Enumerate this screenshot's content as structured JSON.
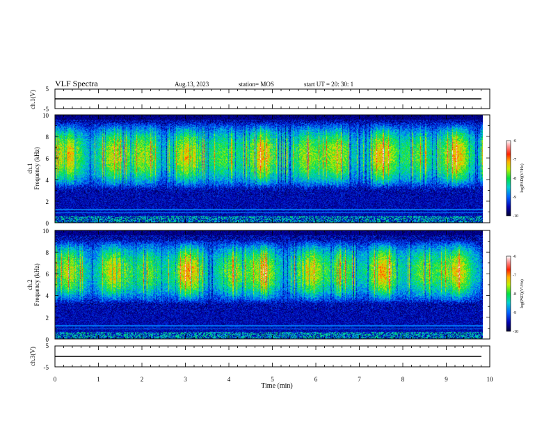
{
  "header": {
    "title": "VLF Spectra",
    "date": "Aug.13, 2023",
    "station": "station= MOS",
    "start": "start  UT  =   20: 30: 1"
  },
  "chart_data": [
    {
      "type": "line",
      "name": "ch.1",
      "ylabel": "ch.1(V)",
      "ylim": [
        -5,
        5
      ],
      "yticks": [
        "5",
        "-5"
      ],
      "xlim": [
        0,
        10
      ],
      "series_level": 0
    },
    {
      "type": "heatmap",
      "name": "ch.1 spectrogram",
      "ylabel": "ch.1\nFrequency (kHz)",
      "ylim": [
        0,
        10
      ],
      "yticks": [
        "0",
        "2",
        "4",
        "6",
        "8",
        "10"
      ],
      "xlim": [
        0,
        9.85
      ],
      "band_center_khz": 6.2,
      "band_halfwidth_khz": 3.2,
      "colorbar": {
        "label": "log(PSD)(V²/Hz)",
        "ticks": [
          "-6",
          "-7",
          "-8",
          "-9",
          "-10"
        ],
        "range": [
          -10,
          -6
        ]
      }
    },
    {
      "type": "heatmap",
      "name": "ch.2 spectrogram",
      "ylabel": "ch.2\nFrequency (kHz)",
      "ylim": [
        0,
        10
      ],
      "yticks": [
        "0",
        "2",
        "4",
        "6",
        "8",
        "10"
      ],
      "xlim": [
        0,
        9.85
      ],
      "band_center_khz": 6.2,
      "band_halfwidth_khz": 3.0,
      "colorbar": {
        "label": "log(PSD)(V²/Hz)",
        "ticks": [
          "-6",
          "-7",
          "-8",
          "-9",
          "-10"
        ],
        "range": [
          -10,
          -6
        ]
      }
    },
    {
      "type": "line",
      "name": "ch.3",
      "ylabel": "ch.3(V)",
      "ylim": [
        -5,
        5
      ],
      "yticks": [
        "5",
        "-5"
      ],
      "xlim": [
        0,
        10
      ],
      "series_level": 0
    }
  ],
  "xaxis": {
    "label": "Time  (min)",
    "ticks": [
      "0",
      "1",
      "2",
      "3",
      "4",
      "5",
      "6",
      "7",
      "8",
      "9",
      "10"
    ]
  },
  "colors": {
    "frame": "#000000",
    "background": "#ffffff"
  }
}
